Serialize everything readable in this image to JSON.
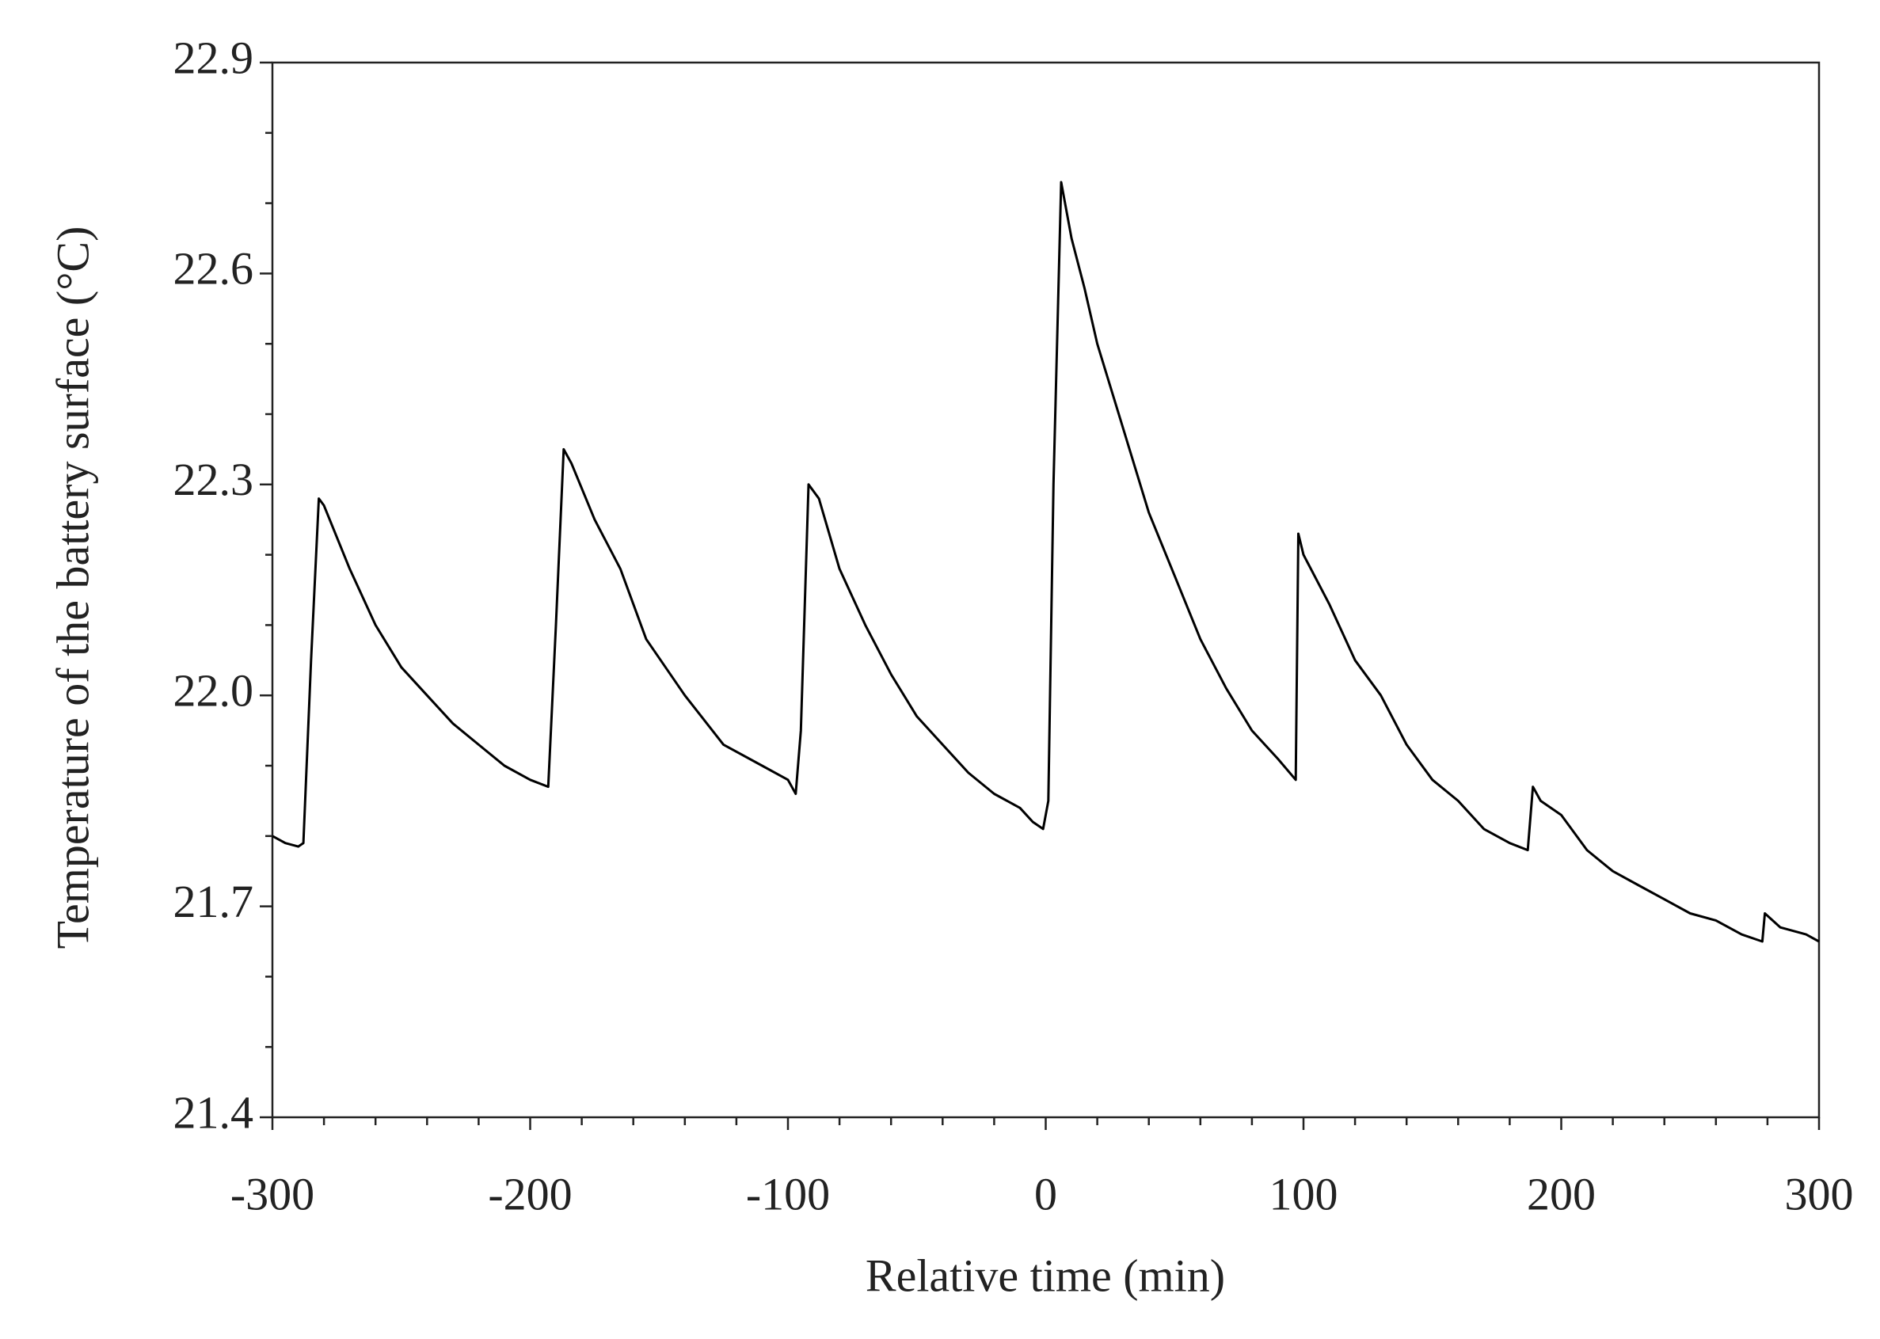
{
  "chart_data": {
    "type": "line",
    "xlabel": "Relative time (min)",
    "ylabel": "Temperature of the battery surface (°C)",
    "x": [
      -300,
      -295,
      -290,
      -288,
      -285,
      -282,
      -280,
      -270,
      -260,
      -250,
      -240,
      -230,
      -220,
      -210,
      -200,
      -193,
      -190,
      -187,
      -184,
      -175,
      -165,
      -155,
      -140,
      -125,
      -110,
      -100,
      -97,
      -95,
      -92,
      -88,
      -80,
      -70,
      -60,
      -50,
      -40,
      -30,
      -20,
      -10,
      -5,
      -1,
      1,
      3,
      6,
      10,
      15,
      20,
      30,
      40,
      50,
      60,
      70,
      80,
      90,
      97,
      98,
      100,
      110,
      120,
      130,
      140,
      150,
      160,
      170,
      180,
      187,
      189,
      192,
      200,
      210,
      220,
      230,
      240,
      250,
      260,
      270,
      278,
      279,
      285,
      295,
      300
    ],
    "series": [
      {
        "color": "#000000",
        "values": [
          21.8,
          21.79,
          21.785,
          21.79,
          22.05,
          22.28,
          22.27,
          22.18,
          22.1,
          22.04,
          22.0,
          21.96,
          21.93,
          21.9,
          21.88,
          21.87,
          22.1,
          22.35,
          22.33,
          22.25,
          22.18,
          22.08,
          22.0,
          21.93,
          21.9,
          21.88,
          21.86,
          21.95,
          22.3,
          22.28,
          22.18,
          22.1,
          22.03,
          21.97,
          21.93,
          21.89,
          21.86,
          21.84,
          21.82,
          21.81,
          21.85,
          22.3,
          22.73,
          22.65,
          22.58,
          22.5,
          22.38,
          22.26,
          22.17,
          22.08,
          22.01,
          21.95,
          21.91,
          21.88,
          22.23,
          22.2,
          22.13,
          22.05,
          22.0,
          21.93,
          21.88,
          21.85,
          21.81,
          21.79,
          21.78,
          21.87,
          21.85,
          21.83,
          21.78,
          21.75,
          21.73,
          21.71,
          21.69,
          21.68,
          21.66,
          21.65,
          21.69,
          21.67,
          21.66,
          21.65
        ]
      }
    ],
    "xlim": [
      -300,
      300
    ],
    "xticks": [
      -300,
      -200,
      -100,
      0,
      100,
      200,
      300
    ],
    "xminorticks": [
      -280,
      -260,
      -240,
      -220,
      -180,
      -160,
      -140,
      -120,
      -80,
      -60,
      -40,
      -20,
      20,
      40,
      60,
      80,
      120,
      140,
      160,
      180,
      220,
      240,
      260,
      280
    ],
    "ylim": [
      21.4,
      22.9
    ],
    "yticks": [
      21.4,
      21.7,
      {
        "value": 22,
        "label": "22.0"
      },
      22.3,
      22.6,
      22.9
    ],
    "yminorticks": [
      21.5,
      21.6,
      21.8,
      21.9,
      22.1,
      22.2,
      22.4,
      22.5,
      22.7,
      22.8
    ],
    "grid": false
  }
}
